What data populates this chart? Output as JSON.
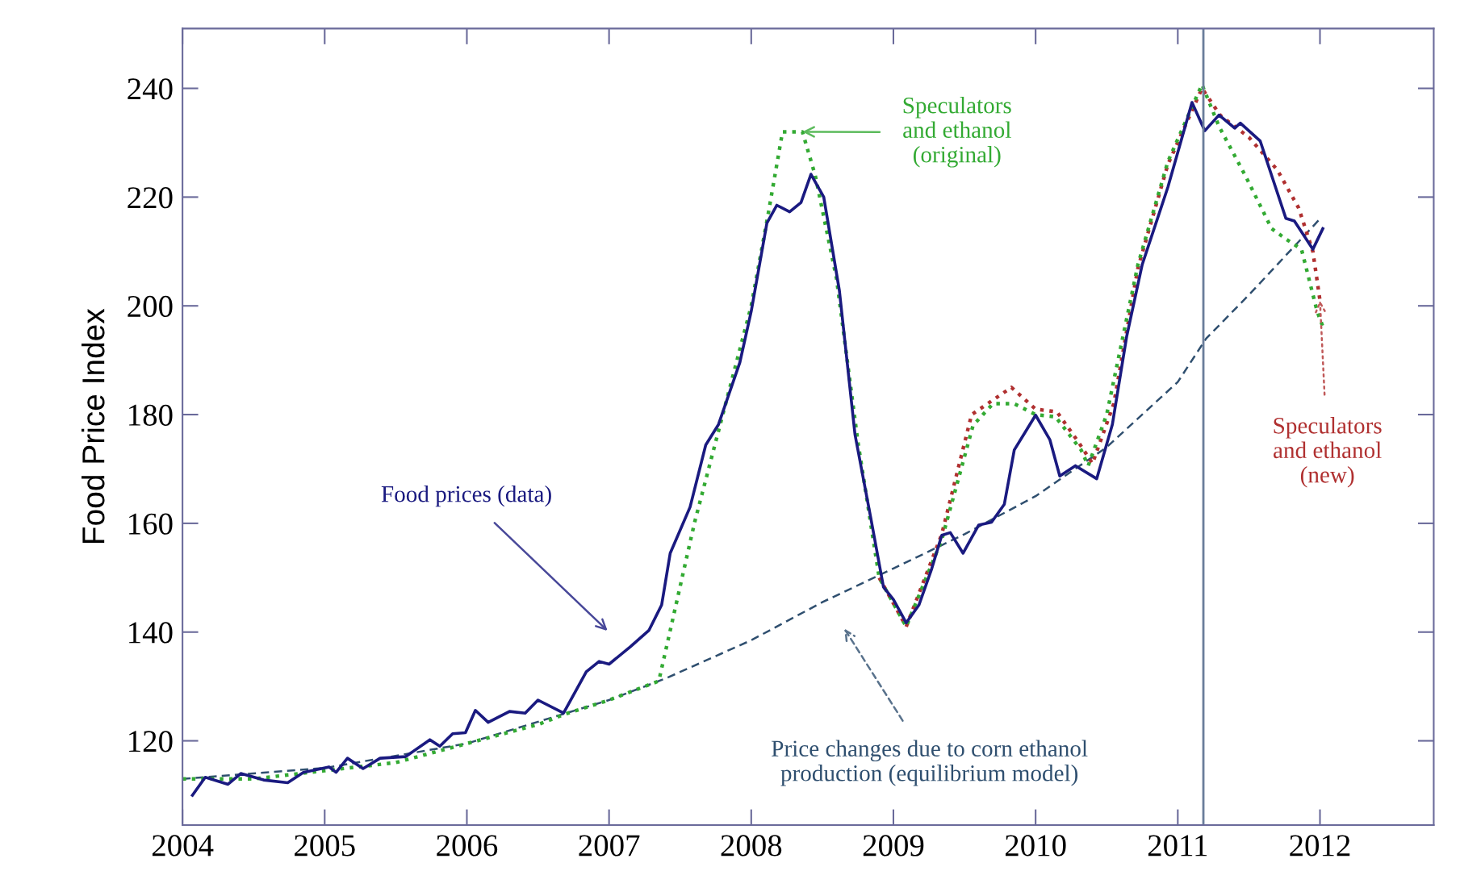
{
  "chart_data": {
    "type": "line",
    "ylabel": "Food Price Index",
    "xlim": [
      2004,
      2012.8
    ],
    "ylim": [
      104.5,
      251
    ],
    "xticks": [
      2004,
      2005,
      2006,
      2007,
      2008,
      2009,
      2010,
      2011,
      2012
    ],
    "yticks": [
      120,
      140,
      160,
      180,
      200,
      220,
      240
    ],
    "grid": false,
    "legend": false,
    "series": [
      {
        "color": "#2f4f6f",
        "line_style": "dashed",
        "x": [
          2004,
          2005,
          2006,
          2007,
          2007.4,
          2008,
          2008.5,
          2009,
          2009.5,
          2010,
          2010.5,
          2011,
          2011.2,
          2011.5,
          2012
        ],
        "values": [
          113,
          115,
          119.5,
          127.5,
          131.5,
          138.5,
          145.5,
          151.7,
          158,
          165,
          174,
          186,
          194,
          202,
          216
        ]
      },
      {
        "color": "#b03030",
        "line_style": "dotted",
        "x": [
          2008.9,
          2009.09,
          2009.34,
          2009.55,
          2009.83,
          2010.0,
          2010.15,
          2010.3,
          2010.4,
          2010.55,
          2010.72,
          2010.93,
          2011.17,
          2011.3,
          2011.5,
          2011.7,
          2011.85,
          2011.95,
          2012.0
        ],
        "values": [
          150,
          141,
          158,
          180,
          185,
          181,
          180.5,
          175,
          171,
          182,
          207,
          226,
          240,
          235,
          231,
          225,
          218,
          210,
          201
        ]
      },
      {
        "color": "#33aa33",
        "line_style": "dotted",
        "x": [
          2004.0,
          2004.5,
          2005.0,
          2005.5,
          2006.0,
          2006.5,
          2006.7,
          2007.0,
          2007.35,
          2007.6,
          2007.8,
          2008.0,
          2008.12,
          2008.22,
          2008.36,
          2008.45,
          2008.6,
          2008.75,
          2008.9,
          2009.09,
          2009.34,
          2009.56,
          2009.7,
          2009.85,
          2010.0,
          2010.14,
          2010.32,
          2010.37,
          2010.5,
          2010.72,
          2010.93,
          2011.17,
          2011.29,
          2011.48,
          2011.66,
          2011.76,
          2011.87,
          2011.98,
          2012.02
        ],
        "values": [
          113,
          113,
          114.5,
          116,
          119.5,
          123,
          125,
          127.5,
          131,
          160,
          180,
          200,
          217,
          232,
          232,
          224,
          205,
          175,
          150,
          141,
          157,
          178,
          182,
          182,
          180,
          179.6,
          173.5,
          170.6,
          180,
          207.6,
          226.5,
          240.7,
          233,
          223.7,
          214.2,
          212.3,
          210.4,
          199,
          196.2
        ]
      },
      {
        "color": "#1a1a80",
        "line_style": "solid",
        "x": [
          2004.07,
          2004.16,
          2004.32,
          2004.41,
          2004.57,
          2004.74,
          2004.85,
          2005.03,
          2005.08,
          2005.16,
          2005.27,
          2005.39,
          2005.57,
          2005.74,
          2005.81,
          2005.9,
          2005.99,
          2006.06,
          2006.15,
          2006.3,
          2006.41,
          2006.5,
          2006.68,
          2006.84,
          2006.93,
          2007.0,
          2007.15,
          2007.28,
          2007.37,
          2007.43,
          2007.57,
          2007.68,
          2007.77,
          2007.92,
          2008.0,
          2008.11,
          2008.18,
          2008.27,
          2008.35,
          2008.42,
          2008.51,
          2008.62,
          2008.73,
          2008.84,
          2008.93,
          2009.0,
          2009.09,
          2009.18,
          2009.27,
          2009.34,
          2009.4,
          2009.49,
          2009.6,
          2009.69,
          2009.78,
          2009.85,
          2010.0,
          2010.1,
          2010.17,
          2010.28,
          2010.43,
          2010.54,
          2010.64,
          2010.75,
          2010.93,
          2011.1,
          2011.19,
          2011.29,
          2011.4,
          2011.44,
          2011.58,
          2011.76,
          2011.82,
          2011.95,
          2012.02
        ],
        "values": [
          110,
          113.3,
          112,
          114,
          112.8,
          112.3,
          114.2,
          115.2,
          114.2,
          116.8,
          114.9,
          116.8,
          117.1,
          120.2,
          119,
          121.3,
          121.5,
          125.6,
          123.4,
          125.4,
          125.1,
          127.5,
          125.1,
          132.7,
          134.6,
          134.1,
          137.3,
          140.3,
          145,
          154.5,
          163,
          174.4,
          178.2,
          189.6,
          199,
          215.2,
          218.5,
          217.3,
          219,
          224.2,
          220,
          202.8,
          176.3,
          161.1,
          148.3,
          146,
          141.7,
          145,
          151.7,
          157.8,
          158.3,
          154.5,
          159.7,
          160.2,
          163.5,
          173.5,
          179.9,
          175.4,
          168.7,
          170.6,
          168.2,
          178.2,
          194.3,
          207.6,
          221.8,
          237.4,
          232.2,
          235.1,
          232.7,
          233.6,
          230.3,
          216.1,
          215.6,
          210.4,
          214.2
        ]
      }
    ],
    "ref_lines": [
      {
        "axis": "x",
        "value": 2011.18,
        "color": "#6a7d9a"
      }
    ],
    "annotations": [
      "Food prices (data)",
      {
        "text": "Speculators\nand ethanol\n(original)",
        "x": 2008.36,
        "y": 232
      },
      {
        "text": "Speculators\nand ethanol\n(new)",
        "x": 2012.0,
        "y": 201
      },
      "Price changes due to corn ethanol\nproduction (equilibrium model)"
    ]
  }
}
